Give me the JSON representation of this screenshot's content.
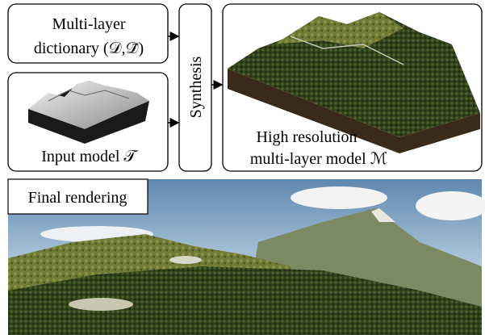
{
  "dictionary": {
    "lines": [
      "Multi-layer",
      "dictionary (𝒟,𝒟̃)"
    ]
  },
  "input": {
    "label": "Input model 𝒯"
  },
  "synthesis": {
    "label": "Synthesis"
  },
  "output": {
    "lines": [
      "High resolution",
      "multi-layer model ℳ"
    ]
  },
  "rendering": {
    "label": "Final rendering"
  }
}
